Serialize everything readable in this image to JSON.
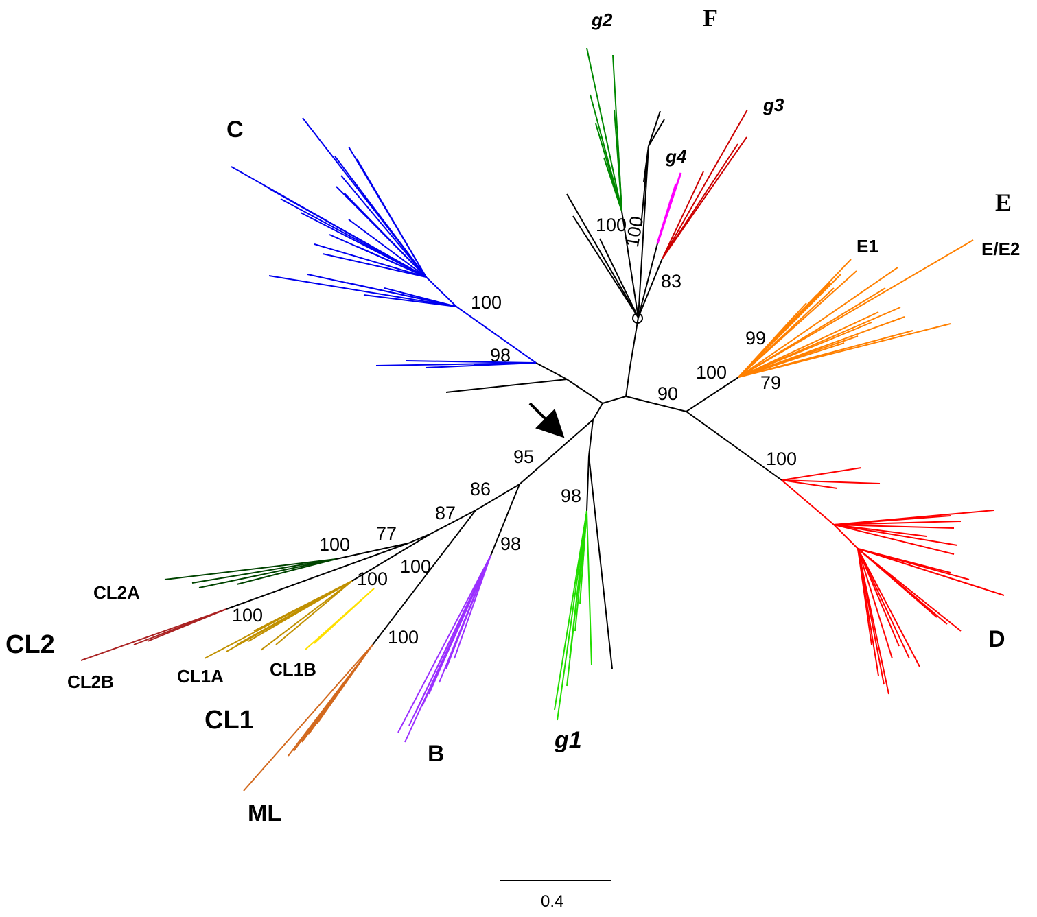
{
  "colors": {
    "C": "#0000ee",
    "D": "#ff0000",
    "E": "#ff8000",
    "B": "#9b30ff",
    "g1": "#22dd00",
    "g2": "#008800",
    "g3": "#cc0000",
    "g4": "#ff00ff",
    "ML": "#d2691e",
    "CL1A": "#c09000",
    "CL1B": "#ffe000",
    "CL2A": "#004400",
    "CL2B": "#aa2222",
    "backbone": "#000000"
  },
  "clades": {
    "C": "C",
    "D": "D",
    "E": "E",
    "E1": "E1",
    "E_E2": "E/E2",
    "F": "F",
    "B": "B",
    "ML": "ML",
    "CL1": "CL1",
    "CL2": "CL2",
    "CL1A": "CL1A",
    "CL1B": "CL1B",
    "CL2A": "CL2A",
    "CL2B": "CL2B",
    "g1": "g1",
    "g2": "g2",
    "g3": "g3",
    "g4": "g4"
  },
  "support": {
    "C_100": "100",
    "C_98": "98",
    "F_g2_100": "100",
    "F_g4_100": "100",
    "F_g3_83": "83",
    "E_100": "100",
    "E1_99": "99",
    "E2_79": "79",
    "DE_90": "90",
    "D_100": "100",
    "n95": "95",
    "n86": "86",
    "n87": "87",
    "n77": "77",
    "CL2_100": "100",
    "CL2B_100": "100",
    "CL1_100": "100",
    "CL1B_100": "100",
    "ML_100": "100",
    "B_98": "98",
    "g1_98": "98"
  },
  "scale_bar": {
    "label": "0.4"
  }
}
